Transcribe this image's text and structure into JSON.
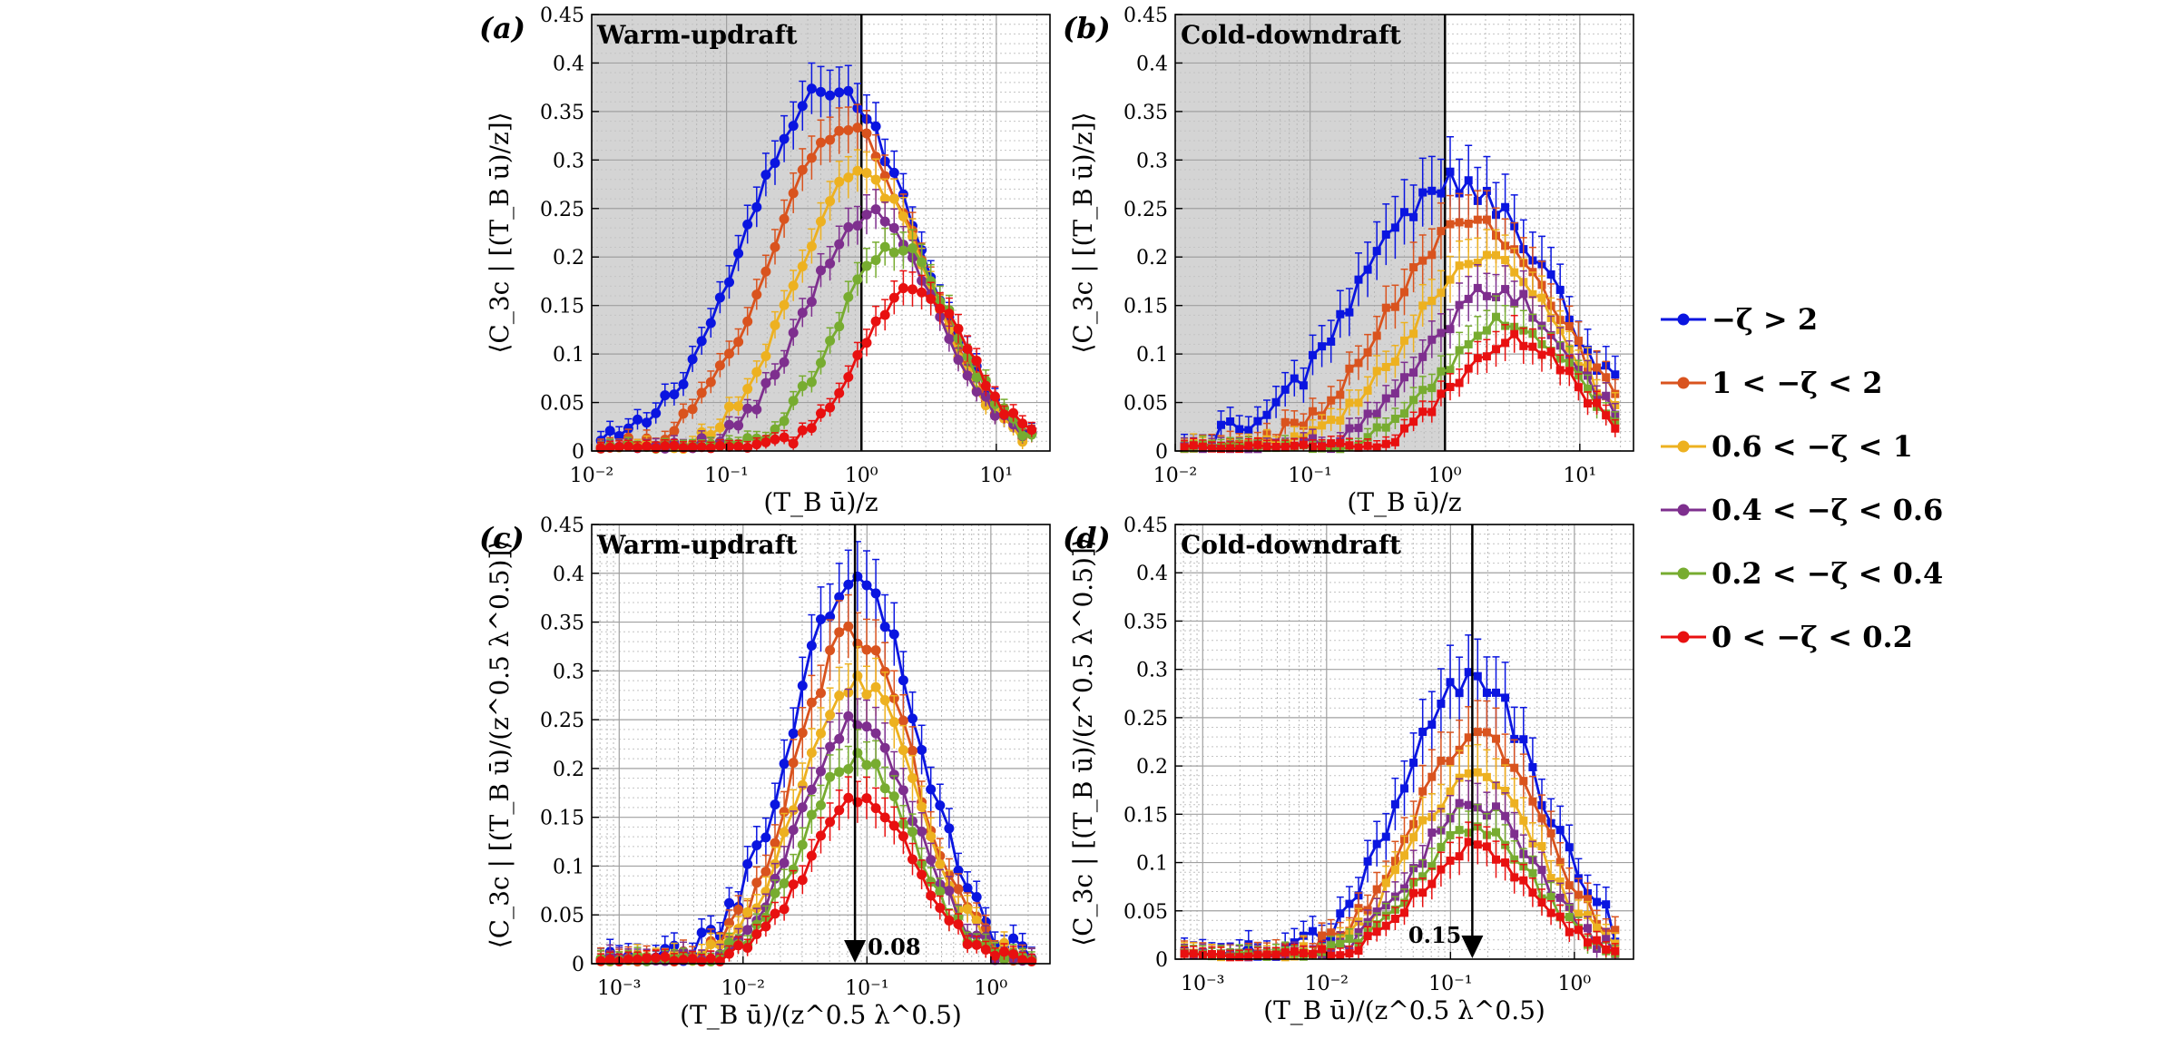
{
  "colors": {
    "series": [
      "#0a15e0",
      "#d9531e",
      "#edb120",
      "#7e2f8e",
      "#77ac30",
      "#e81010"
    ],
    "shade": "#d4d4d4"
  },
  "legend": {
    "entries": [
      "−ζ > 2",
      "1 < −ζ < 2",
      "0.6 < −ζ < 1",
      "0.4 < −ζ < 0.6",
      "0.2 < −ζ < 0.4",
      "0 < −ζ < 0.2"
    ]
  },
  "chart_data": [
    {
      "id": "a",
      "panel_label": "(a)",
      "title": "Warm-updraft",
      "type": "line",
      "xscale": "log",
      "xlim": [
        0.01,
        25
      ],
      "ylim": [
        0,
        0.45
      ],
      "xticks": [
        0.01,
        0.1,
        1,
        10
      ],
      "xtick_labels": [
        "10⁻²",
        "10⁻¹",
        "10⁰",
        "10¹"
      ],
      "yticks": [
        0,
        0.05,
        0.1,
        0.15,
        0.2,
        0.25,
        0.3,
        0.35,
        0.4,
        0.45
      ],
      "ytick_labels": [
        "0",
        "0.05",
        "0.1",
        "0.15",
        "0.2",
        "0.25",
        "0.3",
        "0.35",
        "0.4",
        "0.45"
      ],
      "xlabel": "(T_B ū)/z",
      "ylabel": "⟨C_3c | [(T_B ū)/z]⟩",
      "marker": "circle",
      "shade_x_range": [
        0.01,
        1
      ],
      "vline_x": 1,
      "series": [
        {
          "name": "−ζ > 2",
          "peak_x": 0.6,
          "peak_y": 0.375,
          "sigma": 0.62,
          "err": 0.022
        },
        {
          "name": "1 < −ζ < 2",
          "peak_x": 0.75,
          "peak_y": 0.335,
          "sigma": 0.55,
          "err": 0.02
        },
        {
          "name": "0.6 < −ζ < 1",
          "peak_x": 1.0,
          "peak_y": 0.285,
          "sigma": 0.5,
          "err": 0.018
        },
        {
          "name": "0.4 < −ζ < 0.6",
          "peak_x": 1.2,
          "peak_y": 0.245,
          "sigma": 0.48,
          "err": 0.017
        },
        {
          "name": "0.2 < −ζ < 0.4",
          "peak_x": 1.8,
          "peak_y": 0.21,
          "sigma": 0.44,
          "err": 0.016
        },
        {
          "name": "0 < −ζ < 0.2",
          "peak_x": 2.5,
          "peak_y": 0.17,
          "sigma": 0.4,
          "err": 0.015
        }
      ]
    },
    {
      "id": "b",
      "panel_label": "(b)",
      "title": "Cold-downdraft",
      "type": "line",
      "xscale": "log",
      "xlim": [
        0.01,
        25
      ],
      "ylim": [
        0,
        0.45
      ],
      "xticks": [
        0.01,
        0.1,
        1,
        10
      ],
      "xtick_labels": [
        "10⁻²",
        "10⁻¹",
        "10⁰",
        "10¹"
      ],
      "yticks": [
        0,
        0.05,
        0.1,
        0.15,
        0.2,
        0.25,
        0.3,
        0.35,
        0.4,
        0.45
      ],
      "ytick_labels": [
        "0",
        "0.05",
        "0.1",
        "0.15",
        "0.2",
        "0.25",
        "0.3",
        "0.35",
        "0.4",
        "0.45"
      ],
      "xlabel": "(T_B ū)/z",
      "ylabel": "⟨C_3c | [(T_B ū)/z]⟩",
      "marker": "square",
      "shade_x_range": [
        0.01,
        1
      ],
      "vline_x": 1,
      "series": [
        {
          "name": "−ζ > 2",
          "peak_x": 1.2,
          "peak_y": 0.275,
          "sigma": 0.72,
          "err": 0.03
        },
        {
          "name": "1 < −ζ < 2",
          "peak_x": 1.6,
          "peak_y": 0.24,
          "sigma": 0.62,
          "err": 0.025
        },
        {
          "name": "0.6 < −ζ < 1",
          "peak_x": 2.0,
          "peak_y": 0.205,
          "sigma": 0.56,
          "err": 0.022
        },
        {
          "name": "0.4 < −ζ < 0.6",
          "peak_x": 2.4,
          "peak_y": 0.165,
          "sigma": 0.52,
          "err": 0.02
        },
        {
          "name": "0.2 < −ζ < 0.4",
          "peak_x": 2.9,
          "peak_y": 0.135,
          "sigma": 0.48,
          "err": 0.018
        },
        {
          "name": "0 < −ζ < 0.2",
          "peak_x": 3.3,
          "peak_y": 0.115,
          "sigma": 0.44,
          "err": 0.016
        }
      ]
    },
    {
      "id": "c",
      "panel_label": "(c)",
      "title": "Warm-updraft",
      "type": "line",
      "xscale": "log",
      "xlim": [
        0.0006,
        3
      ],
      "ylim": [
        0,
        0.45
      ],
      "xticks": [
        0.001,
        0.01,
        0.1,
        1
      ],
      "xtick_labels": [
        "10⁻³",
        "10⁻²",
        "10⁻¹",
        "10⁰"
      ],
      "yticks": [
        0,
        0.05,
        0.1,
        0.15,
        0.2,
        0.25,
        0.3,
        0.35,
        0.4,
        0.45
      ],
      "ytick_labels": [
        "0",
        "0.05",
        "0.1",
        "0.15",
        "0.2",
        "0.25",
        "0.3",
        "0.35",
        "0.4",
        "0.45"
      ],
      "xlabel": "(T_B ū)/(z^0.5 λ^0.5)",
      "ylabel": "⟨C_3c | [(T_B ū)/(z^0.5 λ^0.5)]⟩",
      "marker": "circle",
      "arrow_x": 0.08,
      "arrow_label": "0.08",
      "series": [
        {
          "name": "−ζ > 2",
          "peak_x": 0.08,
          "peak_y": 0.4,
          "sigma": 0.5,
          "err": 0.03
        },
        {
          "name": "1 < −ζ < 2",
          "peak_x": 0.08,
          "peak_y": 0.34,
          "sigma": 0.47,
          "err": 0.027
        },
        {
          "name": "0.6 < −ζ < 1",
          "peak_x": 0.085,
          "peak_y": 0.29,
          "sigma": 0.46,
          "err": 0.025
        },
        {
          "name": "0.4 < −ζ < 0.6",
          "peak_x": 0.085,
          "peak_y": 0.25,
          "sigma": 0.45,
          "err": 0.023
        },
        {
          "name": "0.2 < −ζ < 0.4",
          "peak_x": 0.085,
          "peak_y": 0.21,
          "sigma": 0.44,
          "err": 0.02
        },
        {
          "name": "0 < −ζ < 0.2",
          "peak_x": 0.09,
          "peak_y": 0.17,
          "sigma": 0.43,
          "err": 0.018
        }
      ]
    },
    {
      "id": "d",
      "panel_label": "(d)",
      "title": "Cold-downdraft",
      "type": "line",
      "xscale": "log",
      "xlim": [
        0.0006,
        3
      ],
      "ylim": [
        0,
        0.45
      ],
      "xticks": [
        0.001,
        0.01,
        0.1,
        1
      ],
      "xtick_labels": [
        "10⁻³",
        "10⁻²",
        "10⁻¹",
        "10⁰"
      ],
      "yticks": [
        0,
        0.05,
        0.1,
        0.15,
        0.2,
        0.25,
        0.3,
        0.35,
        0.4,
        0.45
      ],
      "ytick_labels": [
        "0",
        "0.05",
        "0.1",
        "0.15",
        "0.2",
        "0.25",
        "0.3",
        "0.35",
        "0.4",
        "0.45"
      ],
      "xlabel": "(T_B ū)/(z^0.5 λ^0.5)",
      "ylabel": "⟨C_3c | [(T_B ū)/(z^0.5 λ^0.5)]⟩",
      "marker": "square",
      "arrow_x": 0.15,
      "arrow_label": "0.15",
      "series": [
        {
          "name": "−ζ > 2",
          "peak_x": 0.15,
          "peak_y": 0.29,
          "sigma": 0.55,
          "err": 0.032
        },
        {
          "name": "1 < −ζ < 2",
          "peak_x": 0.16,
          "peak_y": 0.235,
          "sigma": 0.52,
          "err": 0.027
        },
        {
          "name": "0.6 < −ζ < 1",
          "peak_x": 0.16,
          "peak_y": 0.195,
          "sigma": 0.5,
          "err": 0.024
        },
        {
          "name": "0.4 < −ζ < 0.6",
          "peak_x": 0.16,
          "peak_y": 0.16,
          "sigma": 0.48,
          "err": 0.021
        },
        {
          "name": "0.2 < −ζ < 0.4",
          "peak_x": 0.16,
          "peak_y": 0.135,
          "sigma": 0.47,
          "err": 0.019
        },
        {
          "name": "0 < −ζ < 0.2",
          "peak_x": 0.16,
          "peak_y": 0.115,
          "sigma": 0.46,
          "err": 0.017
        }
      ]
    }
  ]
}
